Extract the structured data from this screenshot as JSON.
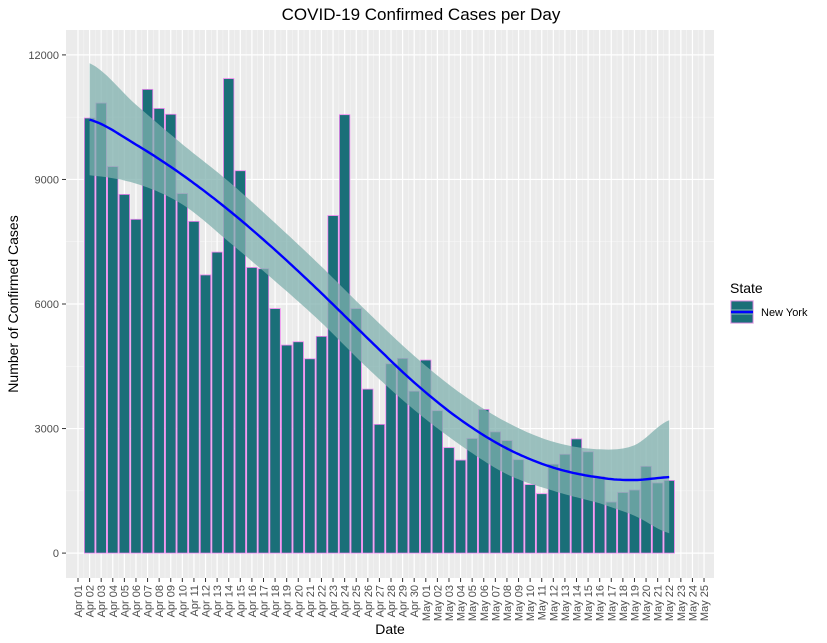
{
  "chart_data": {
    "type": "bar",
    "title": "COVID-19 Confirmed Cases per Day",
    "xlabel": "Date",
    "ylabel": "Number of Confirmed Cases",
    "x_ticks": [
      "Apr 01",
      "Apr 02",
      "Apr 03",
      "Apr 04",
      "Apr 05",
      "Apr 06",
      "Apr 07",
      "Apr 08",
      "Apr 09",
      "Apr 10",
      "Apr 11",
      "Apr 12",
      "Apr 13",
      "Apr 14",
      "Apr 15",
      "Apr 16",
      "Apr 17",
      "Apr 18",
      "Apr 19",
      "Apr 20",
      "Apr 21",
      "Apr 22",
      "Apr 23",
      "Apr 24",
      "Apr 25",
      "Apr 26",
      "Apr 27",
      "Apr 28",
      "Apr 29",
      "Apr 30",
      "May 01",
      "May 02",
      "May 03",
      "May 04",
      "May 05",
      "May 06",
      "May 07",
      "May 08",
      "May 09",
      "May 10",
      "May 11",
      "May 12",
      "May 13",
      "May 14",
      "May 15",
      "May 16",
      "May 17",
      "May 18",
      "May 19",
      "May 20",
      "May 21",
      "May 22",
      "May 23",
      "May 24",
      "May 25"
    ],
    "y_ticks": [
      0,
      3000,
      6000,
      9000,
      12000
    ],
    "ylim": [
      -600,
      12600
    ],
    "bar_start_tick_index": 1,
    "values": [
      10480,
      10840,
      9310,
      8640,
      8040,
      11170,
      10710,
      10570,
      8660,
      7990,
      6700,
      7250,
      11430,
      9210,
      6880,
      6850,
      5890,
      5010,
      5090,
      4680,
      5220,
      8130,
      10560,
      5890,
      3950,
      3100,
      4560,
      4690,
      3900,
      4650,
      3430,
      2540,
      2240,
      2760,
      3460,
      2920,
      2710,
      2250,
      1650,
      1430,
      2140,
      2380,
      2750,
      2440,
      1850,
      1230,
      1460,
      1520,
      2090,
      1690,
      1750
    ],
    "bar_fill": "#1a6f78",
    "bar_outline": "#ee82ee",
    "trend": {
      "line_color": "#0000ff",
      "band_color": "#7fb0ad",
      "x_start_index": 1,
      "x_end_index": 51,
      "knots": [
        {
          "i": 1,
          "fit": 10440,
          "lo": 9100,
          "hi": 11800
        },
        {
          "i": 5,
          "fit": 9840,
          "lo": 8900,
          "hi": 10800
        },
        {
          "i": 9,
          "fit": 9110,
          "lo": 8400,
          "hi": 9850
        },
        {
          "i": 13,
          "fit": 8260,
          "lo": 7500,
          "hi": 8950
        },
        {
          "i": 17,
          "fit": 7300,
          "lo": 6550,
          "hi": 7950
        },
        {
          "i": 21,
          "fit": 6260,
          "lo": 5550,
          "hi": 6900
        },
        {
          "i": 25,
          "fit": 5170,
          "lo": 4450,
          "hi": 5800
        },
        {
          "i": 29,
          "fit": 4110,
          "lo": 3450,
          "hi": 4750
        },
        {
          "i": 33,
          "fit": 3210,
          "lo": 2600,
          "hi": 3850
        },
        {
          "i": 37,
          "fit": 2520,
          "lo": 1900,
          "hi": 3150
        },
        {
          "i": 41,
          "fit": 2060,
          "lo": 1500,
          "hi": 2680
        },
        {
          "i": 45,
          "fit": 1820,
          "lo": 1200,
          "hi": 2500
        },
        {
          "i": 48,
          "fit": 1760,
          "lo": 900,
          "hi": 2600
        },
        {
          "i": 51,
          "fit": 1830,
          "lo": 480,
          "hi": 3200
        }
      ]
    },
    "grid": true,
    "panel_background": "#ebebeb",
    "legend": {
      "title": "State",
      "placement": "right",
      "entries": [
        {
          "label": "New York"
        }
      ]
    }
  }
}
